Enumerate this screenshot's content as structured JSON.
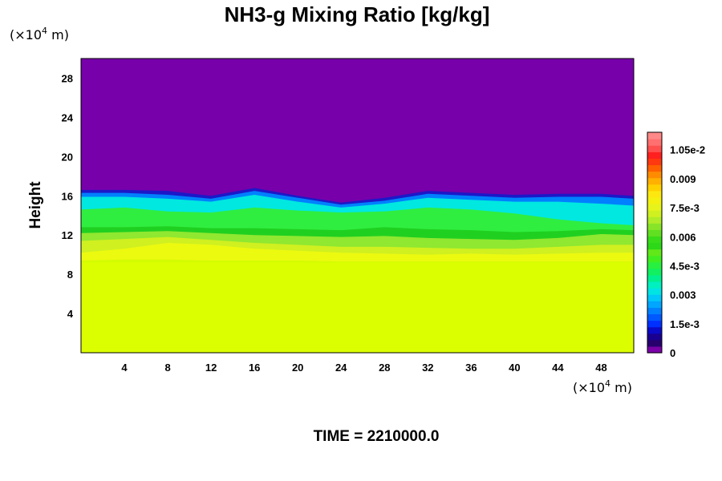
{
  "chart_data": {
    "type": "heatmap",
    "title": "NH3-g Mixing Ratio [kg/kg]",
    "ylabel": "Height",
    "xlabel": "",
    "x_units": {
      "prefix": "(×10",
      "exp": "4",
      "suffix": " m)"
    },
    "y_units": {
      "prefix": "(×10",
      "exp": "4",
      "suffix": " m)"
    },
    "xlim": [
      0,
      51
    ],
    "ylim": [
      0,
      30
    ],
    "x_ticks": [
      4,
      8,
      12,
      16,
      20,
      24,
      28,
      32,
      36,
      40,
      44,
      48
    ],
    "y_ticks": [
      4,
      8,
      12,
      16,
      20,
      24,
      28
    ],
    "field_layers": [
      {
        "level": 0.0,
        "color": "#7700aa",
        "profile": [
          [
            0,
            17.0
          ],
          [
            4,
            17.2
          ],
          [
            8,
            17.1
          ],
          [
            12,
            16.7
          ],
          [
            16,
            17.3
          ],
          [
            20,
            16.4
          ],
          [
            24,
            15.5
          ],
          [
            28,
            16.0
          ],
          [
            32,
            16.7
          ],
          [
            36,
            16.6
          ],
          [
            40,
            16.5
          ],
          [
            44,
            16.6
          ],
          [
            48,
            16.5
          ],
          [
            51,
            16.5
          ]
        ]
      },
      {
        "level": 0.0009,
        "color": "#1c18c8",
        "profile": [
          [
            0,
            16.6
          ],
          [
            4,
            16.6
          ],
          [
            8,
            16.5
          ],
          [
            12,
            16.0
          ],
          [
            16,
            16.8
          ],
          [
            20,
            16.0
          ],
          [
            24,
            15.3
          ],
          [
            28,
            15.8
          ],
          [
            32,
            16.5
          ],
          [
            36,
            16.3
          ],
          [
            40,
            16.1
          ],
          [
            44,
            16.2
          ],
          [
            48,
            16.2
          ],
          [
            51,
            16.0
          ]
        ]
      },
      {
        "level": 0.0024,
        "color": "#0080ff",
        "profile": [
          [
            0,
            16.3
          ],
          [
            4,
            16.3
          ],
          [
            8,
            16.1
          ],
          [
            12,
            15.7
          ],
          [
            16,
            16.5
          ],
          [
            20,
            15.8
          ],
          [
            24,
            15.1
          ],
          [
            28,
            15.5
          ],
          [
            32,
            16.2
          ],
          [
            36,
            16.0
          ],
          [
            40,
            15.8
          ],
          [
            44,
            15.9
          ],
          [
            48,
            15.9
          ],
          [
            51,
            15.7
          ]
        ]
      },
      {
        "level": 0.0039,
        "color": "#00e8e0",
        "profile": [
          [
            0,
            15.9
          ],
          [
            4,
            15.9
          ],
          [
            8,
            15.7
          ],
          [
            12,
            15.4
          ],
          [
            16,
            16.1
          ],
          [
            20,
            15.4
          ],
          [
            24,
            14.8
          ],
          [
            28,
            15.2
          ],
          [
            32,
            15.8
          ],
          [
            36,
            15.6
          ],
          [
            40,
            15.4
          ],
          [
            44,
            15.4
          ],
          [
            48,
            15.2
          ],
          [
            51,
            15.0
          ]
        ]
      },
      {
        "level": 0.0051,
        "color": "#30ee40",
        "profile": [
          [
            0,
            14.6
          ],
          [
            4,
            14.8
          ],
          [
            8,
            14.4
          ],
          [
            12,
            14.3
          ],
          [
            16,
            14.8
          ],
          [
            20,
            14.5
          ],
          [
            24,
            14.3
          ],
          [
            28,
            14.4
          ],
          [
            32,
            14.8
          ],
          [
            36,
            14.6
          ],
          [
            40,
            14.2
          ],
          [
            44,
            13.6
          ],
          [
            48,
            13.2
          ],
          [
            51,
            13.0
          ]
        ]
      },
      {
        "level": 0.0063,
        "color": "#20d020",
        "profile": [
          [
            0,
            12.8
          ],
          [
            4,
            12.8
          ],
          [
            8,
            12.9
          ],
          [
            12,
            12.7
          ],
          [
            16,
            12.7
          ],
          [
            20,
            12.6
          ],
          [
            24,
            12.5
          ],
          [
            28,
            12.8
          ],
          [
            32,
            12.6
          ],
          [
            36,
            12.5
          ],
          [
            40,
            12.3
          ],
          [
            44,
            12.4
          ],
          [
            48,
            12.6
          ],
          [
            51,
            12.5
          ]
        ]
      },
      {
        "level": 0.0069,
        "color": "#90e830",
        "profile": [
          [
            0,
            12.2
          ],
          [
            4,
            12.3
          ],
          [
            8,
            12.4
          ],
          [
            12,
            12.2
          ],
          [
            16,
            12.0
          ],
          [
            20,
            11.9
          ],
          [
            24,
            11.8
          ],
          [
            28,
            11.9
          ],
          [
            32,
            11.7
          ],
          [
            36,
            11.6
          ],
          [
            40,
            11.5
          ],
          [
            44,
            11.7
          ],
          [
            48,
            12.1
          ],
          [
            51,
            12.0
          ]
        ]
      },
      {
        "level": 0.0075,
        "color": "#d0f020",
        "profile": [
          [
            0,
            11.4
          ],
          [
            4,
            11.6
          ],
          [
            8,
            11.8
          ],
          [
            12,
            11.5
          ],
          [
            16,
            11.2
          ],
          [
            20,
            11.0
          ],
          [
            24,
            10.8
          ],
          [
            28,
            10.8
          ],
          [
            32,
            10.7
          ],
          [
            36,
            10.6
          ],
          [
            40,
            10.6
          ],
          [
            44,
            10.8
          ],
          [
            48,
            11.0
          ],
          [
            51,
            11.0
          ]
        ]
      },
      {
        "level": 0.0078,
        "color": "#ecfa10",
        "profile": [
          [
            0,
            10.2
          ],
          [
            4,
            10.6
          ],
          [
            8,
            11.2
          ],
          [
            12,
            11.0
          ],
          [
            16,
            10.6
          ],
          [
            20,
            10.4
          ],
          [
            24,
            10.2
          ],
          [
            28,
            10.1
          ],
          [
            32,
            10.0
          ],
          [
            36,
            10.1
          ],
          [
            40,
            10.0
          ],
          [
            44,
            10.1
          ],
          [
            48,
            10.2
          ],
          [
            51,
            10.2
          ]
        ]
      },
      {
        "level": 0.0076,
        "color": "#d4fc00",
        "profile": [
          [
            0,
            9.4
          ],
          [
            4,
            9.5
          ],
          [
            8,
            9.5
          ],
          [
            12,
            9.4
          ],
          [
            16,
            9.4
          ],
          [
            20,
            9.4
          ],
          [
            24,
            9.3
          ],
          [
            28,
            9.3
          ],
          [
            32,
            9.3
          ],
          [
            36,
            9.3
          ],
          [
            40,
            9.3
          ],
          [
            44,
            9.3
          ],
          [
            48,
            9.3
          ],
          [
            51,
            9.3
          ]
        ]
      },
      {
        "level": 0.0076,
        "color": "#dcff00",
        "profile": [
          [
            0,
            9.2
          ],
          [
            51,
            9.2
          ]
        ]
      }
    ],
    "colorbar": {
      "labels": [
        "1.05e-2",
        "0.009",
        "7.5e-3",
        "0.006",
        "4.5e-3",
        "0.003",
        "1.5e-3",
        "0"
      ],
      "label_values": [
        0.0105,
        0.009,
        0.0075,
        0.006,
        0.0045,
        0.003,
        0.0015,
        0
      ],
      "range": [
        0,
        0.0114
      ],
      "bands": [
        "#7a00a8",
        "#28006e",
        "#1a0090",
        "#0a0ac8",
        "#0030ff",
        "#0058ff",
        "#0080ff",
        "#00a6ff",
        "#00c8f8",
        "#00e4e4",
        "#00f0c0",
        "#00f090",
        "#10f060",
        "#28f040",
        "#40ee20",
        "#60e818",
        "#2cd818",
        "#38dc18",
        "#60e020",
        "#88e428",
        "#b0ec28",
        "#d0f020",
        "#e6f41c",
        "#f4f010",
        "#fce810",
        "#ffd000",
        "#ffb000",
        "#ff8c00",
        "#ff6000",
        "#ff3810",
        "#ff2020",
        "#ff5050",
        "#ff7070",
        "#ff8888"
      ]
    },
    "footer": "TIME = 2210000.0"
  }
}
